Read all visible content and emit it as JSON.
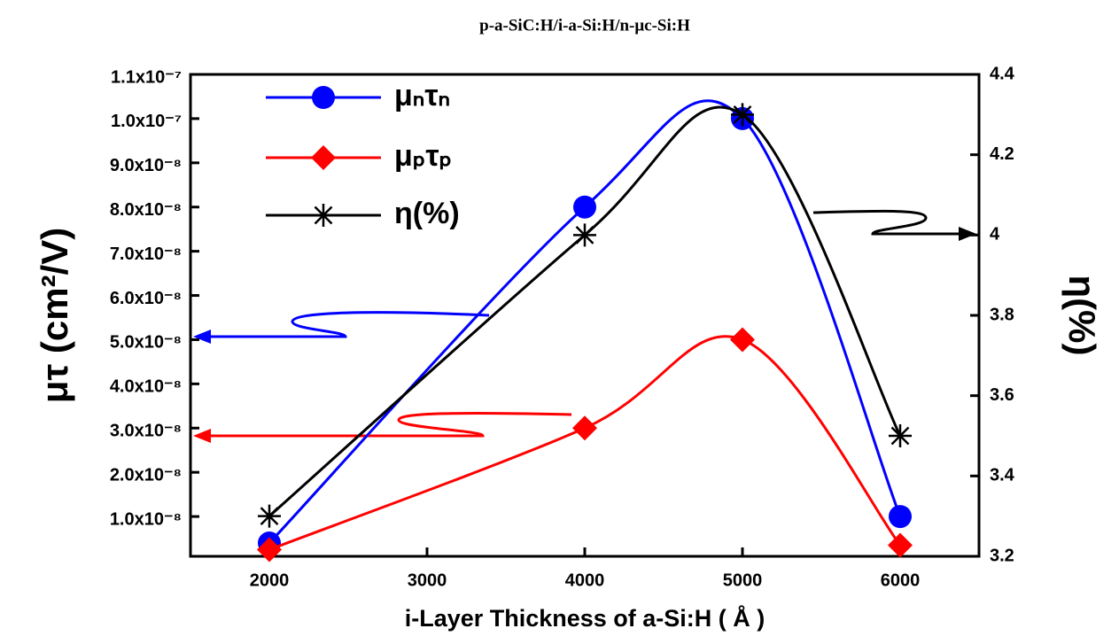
{
  "chart_data": {
    "type": "line",
    "title": "p-a-SiC:H/i-a-Si:H/n-μc-Si:H",
    "x_label": "i-Layer Thickness of a-Si:H ( Å )",
    "y_label": "μτ (cm²/V)",
    "y2_label": "η(%)",
    "x": [
      2000,
      4000,
      5000,
      6000
    ],
    "series": [
      {
        "name": "μₙτₙ",
        "color": "#0000ff",
        "marker": "circle",
        "values": [
          4e-09,
          8e-08,
          1e-07,
          1e-08
        ]
      },
      {
        "name": "μₚτₚ",
        "color": "#ff0000",
        "marker": "diamond",
        "values": [
          2.5e-09,
          3e-08,
          5e-08,
          3.5e-09
        ]
      },
      {
        "name": "η(%)",
        "color": "#000000",
        "marker": "asterisk",
        "axis": "y2",
        "values": [
          3.3,
          4.0,
          4.3,
          3.5
        ]
      }
    ],
    "xlim": [
      1500,
      6500
    ],
    "xticks": [
      2000,
      3000,
      4000,
      5000,
      6000
    ],
    "ylim": [
      1e-09,
      1.1e-07
    ],
    "yticks": [
      {
        "value": 1e-08,
        "label": "1.0x10⁻⁸"
      },
      {
        "value": 2e-08,
        "label": "2.0x10⁻⁸"
      },
      {
        "value": 3e-08,
        "label": "3.0x10⁻⁸"
      },
      {
        "value": 4e-08,
        "label": "4.0x10⁻⁸"
      },
      {
        "value": 5e-08,
        "label": "5.0x10⁻⁸"
      },
      {
        "value": 6e-08,
        "label": "6.0x10⁻⁸"
      },
      {
        "value": 7e-08,
        "label": "7.0x10⁻⁸"
      },
      {
        "value": 8e-08,
        "label": "8.0x10⁻⁸"
      },
      {
        "value": 9e-08,
        "label": "9.0x10⁻⁸"
      },
      {
        "value": 1e-07,
        "label": "1.0x10⁻⁷"
      },
      {
        "value": 1.1e-07,
        "label": "1.1x10⁻⁷"
      }
    ],
    "y2lim": [
      3.2,
      4.4
    ],
    "y2ticks": [
      3.2,
      3.4,
      3.6,
      3.8,
      4.0,
      4.2,
      4.4
    ],
    "legend": "upper left"
  }
}
